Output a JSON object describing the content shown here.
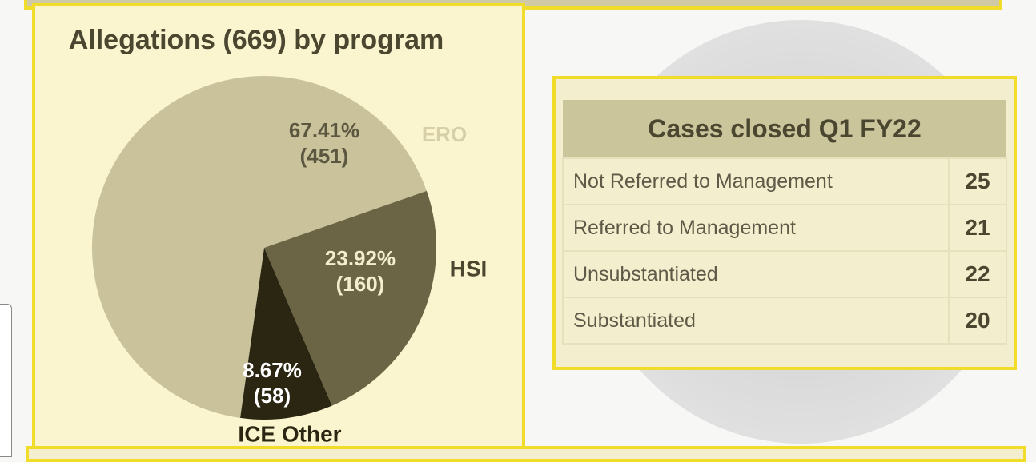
{
  "chart_data": {
    "type": "pie",
    "title": "Allegations (669) by program",
    "categories": [
      "ERO",
      "HSI",
      "ICE Other"
    ],
    "values": [
      67.41,
      23.92,
      8.67
    ],
    "value_labels": [
      "67.41%",
      "23.92%",
      "8.67%"
    ],
    "count_labels": [
      "(451)",
      "(160)",
      "(58)"
    ],
    "colors": [
      "#c9c29b",
      "#6b6546",
      "#2b2611"
    ]
  },
  "table": {
    "title": "Cases closed Q1 FY22",
    "rows": [
      [
        "Not Referred to Management",
        25
      ],
      [
        "Referred to Management",
        21
      ],
      [
        "Unsubstantiated",
        22
      ],
      [
        "Substantiated",
        20
      ]
    ]
  }
}
